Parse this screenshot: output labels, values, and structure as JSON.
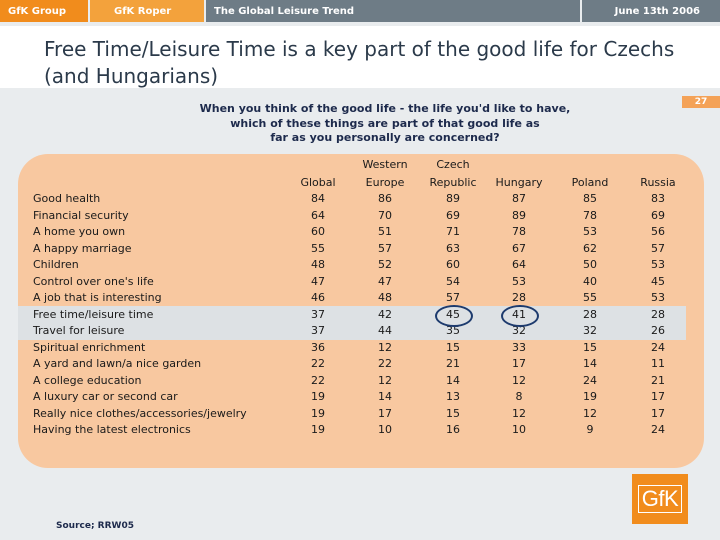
{
  "header": {
    "group": "GfK Group",
    "roper": "GfK Roper",
    "trend": "The Global Leisure Trend",
    "date": "June 13th 2006"
  },
  "title": "Free Time/Leisure Time is a key part of the good life for Czechs (and Hungarians)",
  "page_number": "27",
  "question": {
    "line1": "When you think of the good life - the life you'd like to have,",
    "line2": "which of  these things are part of that good life as",
    "line3": "far as you personally are concerned?"
  },
  "columns": [
    {
      "top": "",
      "bottom": "Global"
    },
    {
      "top": "Western",
      "bottom": "Europe"
    },
    {
      "top": "Czech",
      "bottom": "Republic"
    },
    {
      "top": "",
      "bottom": "Hungary"
    },
    {
      "top": "",
      "bottom": "Poland"
    },
    {
      "top": "",
      "bottom": "Russia"
    }
  ],
  "rows": [
    {
      "label": "Good health",
      "values": [
        "84",
        "86",
        "89",
        "87",
        "85",
        "83"
      ]
    },
    {
      "label": "Financial security",
      "values": [
        "64",
        "70",
        "69",
        "89",
        "78",
        "69"
      ]
    },
    {
      "label": "A home you own",
      "values": [
        "60",
        "51",
        "71",
        "78",
        "53",
        "56"
      ]
    },
    {
      "label": "A happy marriage",
      "values": [
        "55",
        "57",
        "63",
        "67",
        "62",
        "57"
      ]
    },
    {
      "label": "Children",
      "values": [
        "48",
        "52",
        "60",
        "64",
        "50",
        "53"
      ]
    },
    {
      "label": "Control over one's life",
      "values": [
        "47",
        "47",
        "54",
        "53",
        "40",
        "45"
      ]
    },
    {
      "label": "A job that is interesting",
      "values": [
        "46",
        "48",
        "57",
        "28",
        "55",
        "53"
      ]
    },
    {
      "label": "Free time/leisure time",
      "values": [
        "37",
        "42",
        "45",
        "41",
        "28",
        "28"
      ]
    },
    {
      "label": "Travel for leisure",
      "values": [
        "37",
        "44",
        "35",
        "32",
        "32",
        "26"
      ]
    },
    {
      "label": "Spiritual enrichment",
      "values": [
        "36",
        "12",
        "15",
        "33",
        "15",
        "24"
      ]
    },
    {
      "label": "A yard and lawn/a nice garden",
      "values": [
        "22",
        "22",
        "21",
        "17",
        "14",
        "11"
      ]
    },
    {
      "label": "A college education",
      "values": [
        "22",
        "12",
        "14",
        "12",
        "24",
        "21"
      ]
    },
    {
      "label": "A luxury car or second car",
      "values": [
        "19",
        "14",
        "13",
        "8",
        "19",
        "17"
      ]
    },
    {
      "label": "Really nice clothes/accessories/jewelry",
      "values": [
        "19",
        "17",
        "15",
        "12",
        "12",
        "17"
      ]
    },
    {
      "label": "Having the latest electronics",
      "values": [
        "19",
        "10",
        "16",
        "10",
        "9",
        "24"
      ]
    }
  ],
  "source": "Source; RRW05",
  "logo": "GfK",
  "colors": {
    "orange": "#f18c1c",
    "panel": "#f8c8a0",
    "slate": "#6e7c86",
    "circle": "#1d3b6e"
  }
}
